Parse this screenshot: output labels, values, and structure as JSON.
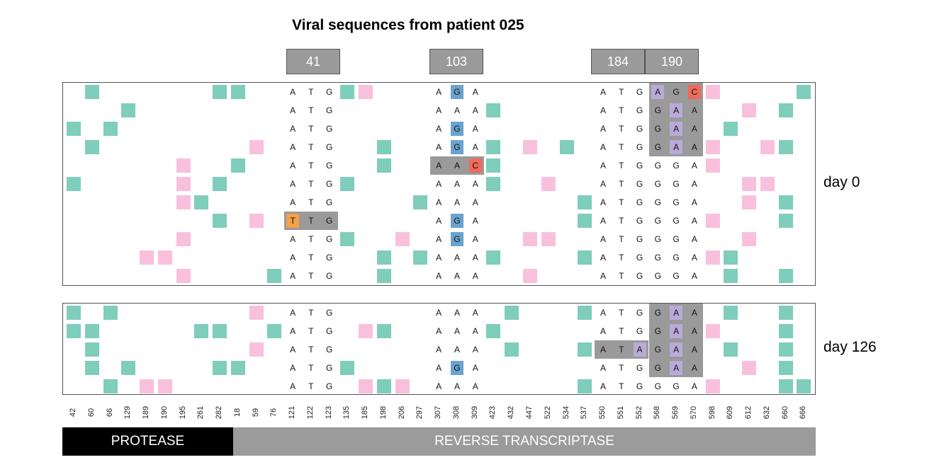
{
  "title": "Viral sequences from patient 025",
  "codon_labels": [
    "41",
    "103",
    "184",
    "190"
  ],
  "day_labels": [
    "day 0",
    "day 126"
  ],
  "positions": [
    "42",
    "60",
    "66",
    "129",
    "189",
    "190",
    "195",
    "261",
    "282",
    "18",
    "59",
    "76",
    "121",
    "122",
    "123",
    "135",
    "185",
    "198",
    "206",
    "297",
    "307",
    "308",
    "309",
    "423",
    "432",
    "447",
    "522",
    "534",
    "537",
    "550",
    "551",
    "552",
    "568",
    "569",
    "570",
    "598",
    "609",
    "612",
    "632",
    "660",
    "666"
  ],
  "regions": [
    {
      "name": "PROTEASE",
      "color": "#000000"
    },
    {
      "name": "REVERSE TRANSCRIPTASE",
      "color": "#9b9b9b"
    }
  ],
  "colors": {
    "syn": "#7fcdbb",
    "nonsyn": "#f9c0dd",
    "gray": "#999999",
    "A": "#b9aad8",
    "G": "#6aa3cf",
    "C": "#ef6a5a",
    "T": "#f5a04a"
  },
  "nt_columns": [
    12,
    13,
    14,
    20,
    21,
    22,
    29,
    30,
    31,
    32,
    33,
    34
  ],
  "panels": [
    {
      "day": "day 0",
      "rows": [
        {
          "nt": [
            "A",
            "T",
            "G",
            "A",
            "G",
            "A",
            "A",
            "T",
            "G",
            "A",
            "G",
            "C"
          ],
          "cells": [
            [
              1,
              "syn"
            ],
            [
              8,
              "syn"
            ],
            [
              9,
              "syn"
            ],
            [
              15,
              "syn"
            ],
            [
              16,
              "nonsyn"
            ],
            [
              35,
              "nonsyn"
            ],
            [
              40,
              "syn"
            ]
          ],
          "hl": {
            "21": "G",
            "32": "A",
            "34": "C"
          },
          "gray": [
            [
              32,
              34
            ]
          ]
        },
        {
          "nt": [
            "A",
            "T",
            "G",
            "A",
            "A",
            "A",
            "A",
            "T",
            "G",
            "G",
            "A",
            "A"
          ],
          "cells": [
            [
              3,
              "syn"
            ],
            [
              23,
              "syn"
            ],
            [
              37,
              "nonsyn"
            ],
            [
              39,
              "syn"
            ]
          ],
          "hl": {
            "33": "A"
          },
          "gray": [
            [
              32,
              34
            ]
          ]
        },
        {
          "nt": [
            "A",
            "T",
            "G",
            "A",
            "G",
            "A",
            "A",
            "T",
            "G",
            "G",
            "A",
            "A"
          ],
          "cells": [
            [
              0,
              "syn"
            ],
            [
              2,
              "syn"
            ],
            [
              36,
              "syn"
            ]
          ],
          "hl": {
            "21": "G",
            "33": "A"
          },
          "gray": [
            [
              32,
              34
            ]
          ]
        },
        {
          "nt": [
            "A",
            "T",
            "G",
            "A",
            "G",
            "A",
            "A",
            "T",
            "G",
            "G",
            "A",
            "A"
          ],
          "cells": [
            [
              1,
              "syn"
            ],
            [
              10,
              "nonsyn"
            ],
            [
              17,
              "syn"
            ],
            [
              23,
              "syn"
            ],
            [
              25,
              "nonsyn"
            ],
            [
              27,
              "syn"
            ],
            [
              35,
              "nonsyn"
            ],
            [
              38,
              "nonsyn"
            ],
            [
              39,
              "syn"
            ]
          ],
          "hl": {
            "21": "G",
            "33": "A"
          },
          "gray": [
            [
              32,
              34
            ]
          ]
        },
        {
          "nt": [
            "A",
            "T",
            "G",
            "A",
            "A",
            "C",
            "A",
            "T",
            "G",
            "G",
            "G",
            "A"
          ],
          "cells": [
            [
              6,
              "nonsyn"
            ],
            [
              9,
              "syn"
            ],
            [
              17,
              "syn"
            ],
            [
              23,
              "syn"
            ],
            [
              35,
              "nonsyn"
            ]
          ],
          "hl": {
            "22": "C"
          },
          "gray": [
            [
              20,
              22
            ]
          ]
        },
        {
          "nt": [
            "A",
            "T",
            "G",
            "A",
            "A",
            "A",
            "A",
            "T",
            "G",
            "G",
            "G",
            "A"
          ],
          "cells": [
            [
              0,
              "syn"
            ],
            [
              6,
              "nonsyn"
            ],
            [
              8,
              "syn"
            ],
            [
              15,
              "syn"
            ],
            [
              23,
              "syn"
            ],
            [
              26,
              "nonsyn"
            ],
            [
              37,
              "nonsyn"
            ],
            [
              38,
              "nonsyn"
            ]
          ],
          "hl": {},
          "gray": []
        },
        {
          "nt": [
            "A",
            "T",
            "G",
            "A",
            "A",
            "A",
            "A",
            "T",
            "G",
            "G",
            "G",
            "A"
          ],
          "cells": [
            [
              6,
              "nonsyn"
            ],
            [
              7,
              "syn"
            ],
            [
              19,
              "syn"
            ],
            [
              28,
              "syn"
            ],
            [
              37,
              "nonsyn"
            ],
            [
              39,
              "syn"
            ]
          ],
          "hl": {},
          "gray": []
        },
        {
          "nt": [
            "T",
            "T",
            "G",
            "A",
            "G",
            "A",
            "A",
            "T",
            "G",
            "G",
            "G",
            "A"
          ],
          "cells": [
            [
              8,
              "syn"
            ],
            [
              10,
              "nonsyn"
            ],
            [
              28,
              "syn"
            ],
            [
              35,
              "nonsyn"
            ],
            [
              39,
              "syn"
            ]
          ],
          "hl": {
            "12": "T",
            "21": "G"
          },
          "gray": [
            [
              12,
              14
            ]
          ]
        },
        {
          "nt": [
            "A",
            "T",
            "G",
            "A",
            "G",
            "A",
            "A",
            "T",
            "G",
            "G",
            "G",
            "A"
          ],
          "cells": [
            [
              6,
              "nonsyn"
            ],
            [
              15,
              "syn"
            ],
            [
              18,
              "nonsyn"
            ],
            [
              25,
              "nonsyn"
            ],
            [
              26,
              "nonsyn"
            ],
            [
              37,
              "nonsyn"
            ]
          ],
          "hl": {
            "21": "G"
          },
          "gray": []
        },
        {
          "nt": [
            "A",
            "T",
            "G",
            "A",
            "A",
            "A",
            "A",
            "T",
            "G",
            "G",
            "G",
            "A"
          ],
          "cells": [
            [
              4,
              "nonsyn"
            ],
            [
              5,
              "nonsyn"
            ],
            [
              17,
              "syn"
            ],
            [
              19,
              "syn"
            ],
            [
              23,
              "syn"
            ],
            [
              28,
              "syn"
            ],
            [
              35,
              "nonsyn"
            ],
            [
              36,
              "syn"
            ]
          ],
          "hl": {},
          "gray": []
        },
        {
          "nt": [
            "A",
            "T",
            "G",
            "A",
            "A",
            "A",
            "A",
            "T",
            "G",
            "G",
            "G",
            "A"
          ],
          "cells": [
            [
              6,
              "nonsyn"
            ],
            [
              11,
              "syn"
            ],
            [
              17,
              "syn"
            ],
            [
              25,
              "nonsyn"
            ],
            [
              36,
              "syn"
            ],
            [
              39,
              "syn"
            ]
          ],
          "hl": {},
          "gray": []
        }
      ]
    },
    {
      "day": "day 126",
      "rows": [
        {
          "nt": [
            "A",
            "T",
            "G",
            "A",
            "A",
            "A",
            "A",
            "T",
            "G",
            "G",
            "A",
            "A"
          ],
          "cells": [
            [
              0,
              "syn"
            ],
            [
              2,
              "syn"
            ],
            [
              10,
              "nonsyn"
            ],
            [
              24,
              "syn"
            ],
            [
              28,
              "syn"
            ],
            [
              36,
              "syn"
            ],
            [
              39,
              "syn"
            ]
          ],
          "hl": {
            "33": "A"
          },
          "gray": [
            [
              32,
              34
            ]
          ]
        },
        {
          "nt": [
            "A",
            "T",
            "G",
            "A",
            "A",
            "A",
            "A",
            "T",
            "G",
            "G",
            "A",
            "A"
          ],
          "cells": [
            [
              0,
              "syn"
            ],
            [
              1,
              "syn"
            ],
            [
              7,
              "syn"
            ],
            [
              8,
              "syn"
            ],
            [
              11,
              "syn"
            ],
            [
              16,
              "nonsyn"
            ],
            [
              17,
              "syn"
            ],
            [
              23,
              "syn"
            ],
            [
              35,
              "nonsyn"
            ],
            [
              39,
              "syn"
            ]
          ],
          "hl": {
            "33": "A"
          },
          "gray": [
            [
              32,
              34
            ]
          ]
        },
        {
          "nt": [
            "A",
            "T",
            "G",
            "A",
            "A",
            "A",
            "A",
            "T",
            "A",
            "G",
            "A",
            "A"
          ],
          "cells": [
            [
              1,
              "syn"
            ],
            [
              10,
              "nonsyn"
            ],
            [
              24,
              "syn"
            ],
            [
              28,
              "syn"
            ],
            [
              36,
              "syn"
            ],
            [
              39,
              "syn"
            ]
          ],
          "hl": {
            "31": "A",
            "33": "A"
          },
          "gray": [
            [
              29,
              31
            ],
            [
              32,
              34
            ]
          ]
        },
        {
          "nt": [
            "A",
            "T",
            "G",
            "A",
            "G",
            "A",
            "A",
            "T",
            "G",
            "G",
            "A",
            "A"
          ],
          "cells": [
            [
              1,
              "syn"
            ],
            [
              3,
              "syn"
            ],
            [
              8,
              "syn"
            ],
            [
              9,
              "syn"
            ],
            [
              15,
              "syn"
            ],
            [
              37,
              "nonsyn"
            ],
            [
              39,
              "syn"
            ]
          ],
          "hl": {
            "21": "G",
            "33": "A"
          },
          "gray": [
            [
              32,
              34
            ]
          ]
        },
        {
          "nt": [
            "A",
            "T",
            "G",
            "A",
            "A",
            "A",
            "A",
            "T",
            "G",
            "G",
            "G",
            "A"
          ],
          "cells": [
            [
              2,
              "syn"
            ],
            [
              4,
              "nonsyn"
            ],
            [
              5,
              "nonsyn"
            ],
            [
              16,
              "nonsyn"
            ],
            [
              17,
              "syn"
            ],
            [
              18,
              "nonsyn"
            ],
            [
              28,
              "syn"
            ],
            [
              35,
              "nonsyn"
            ],
            [
              39,
              "syn"
            ],
            [
              40,
              "syn"
            ]
          ],
          "hl": {},
          "gray": []
        }
      ]
    }
  ]
}
